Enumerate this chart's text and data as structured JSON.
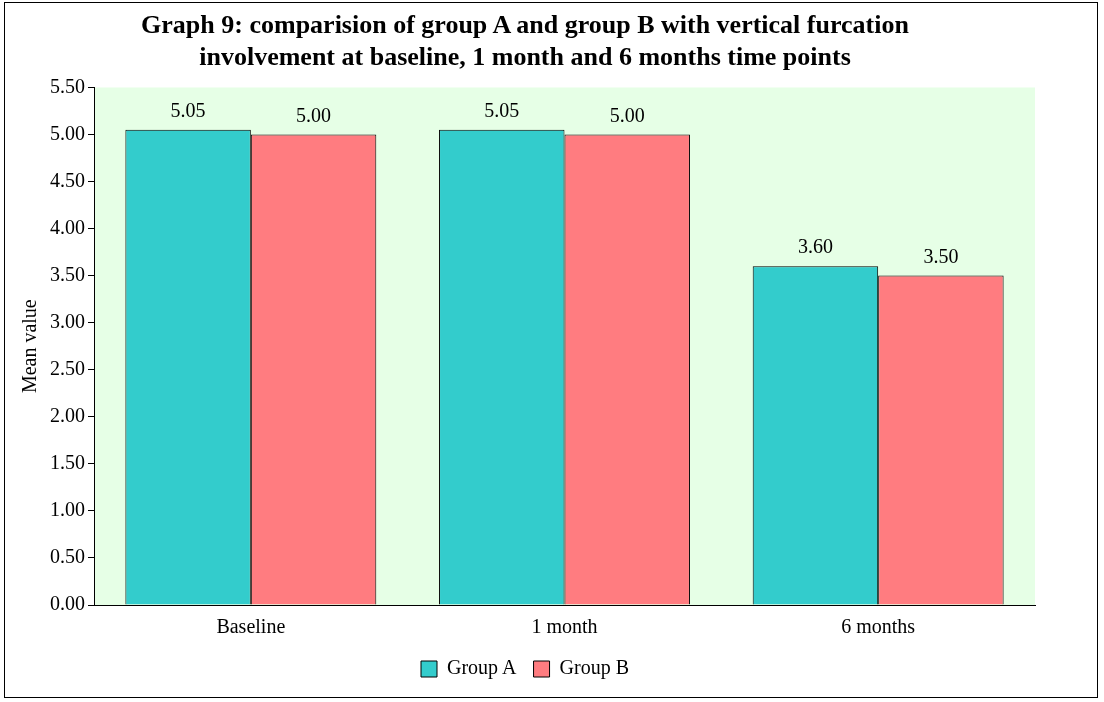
{
  "chart_data": {
    "type": "bar",
    "title": "Graph 9: comparision of group A and group B with vertical furcation involvement at baseline, 1 month and 6 months time points",
    "ylabel": "Mean value",
    "categories": [
      "Baseline",
      "1 month",
      "6 months"
    ],
    "series": [
      {
        "name": "Group A",
        "color": "#33cccc",
        "values": [
          5.05,
          5.05,
          3.6
        ],
        "value_labels": [
          "5.05",
          "5.05",
          "3.60"
        ]
      },
      {
        "name": "Group B",
        "color": "#ff7c80",
        "values": [
          5.0,
          5.0,
          3.5
        ],
        "value_labels": [
          "5.00",
          "5.00",
          "3.50"
        ]
      }
    ],
    "ylim": [
      0,
      5.5
    ],
    "yticks": [
      {
        "value": 0,
        "label": "0.00"
      },
      {
        "value": 0.5,
        "label": "0.50"
      },
      {
        "value": 1,
        "label": "1.00"
      },
      {
        "value": 1.5,
        "label": "1.50"
      },
      {
        "value": 2,
        "label": "2.00"
      },
      {
        "value": 2.5,
        "label": "2.50"
      },
      {
        "value": 3,
        "label": "3.00"
      },
      {
        "value": 3.5,
        "label": "3.50"
      },
      {
        "value": 4,
        "label": "4.00"
      },
      {
        "value": 4.5,
        "label": "4.50"
      },
      {
        "value": 5,
        "label": "5.00"
      },
      {
        "value": 5.5,
        "label": "5.50"
      }
    ],
    "grid": false,
    "legend": "bottom"
  }
}
